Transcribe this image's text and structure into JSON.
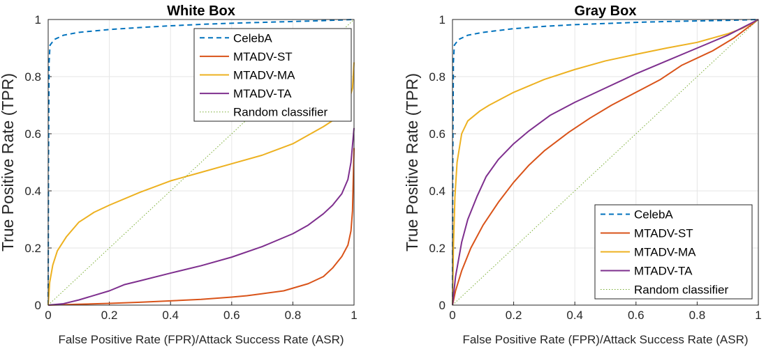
{
  "chart_data": [
    {
      "type": "line",
      "title": "White Box",
      "xlabel": "False Positive Rate (FPR)/Attack Success Rate (ASR)",
      "ylabel": "True Positive Rate (TPR)",
      "xlim": [
        0,
        1
      ],
      "ylim": [
        0,
        1
      ],
      "xticks": [
        "0",
        "0.2",
        "0.4",
        "0.6",
        "0.8",
        "1"
      ],
      "yticks": [
        "0",
        "0.2",
        "0.4",
        "0.6",
        "0.8",
        "1"
      ],
      "grid": true,
      "legend_position": "top-right",
      "series": [
        {
          "name": "CelebA",
          "color": "#0072BD",
          "style": "dashed",
          "points": [
            [
              0,
              0
            ],
            [
              0.001,
              0.5
            ],
            [
              0.003,
              0.85
            ],
            [
              0.006,
              0.91
            ],
            [
              0.02,
              0.93
            ],
            [
              0.05,
              0.945
            ],
            [
              0.1,
              0.955
            ],
            [
              0.2,
              0.965
            ],
            [
              0.3,
              0.972
            ],
            [
              0.4,
              0.978
            ],
            [
              0.5,
              0.983
            ],
            [
              0.6,
              0.987
            ],
            [
              0.7,
              0.99
            ],
            [
              0.8,
              0.993
            ],
            [
              0.9,
              0.996
            ],
            [
              1,
              1
            ]
          ]
        },
        {
          "name": "MTADV-ST",
          "color": "#D95319",
          "style": "solid",
          "points": [
            [
              0,
              0
            ],
            [
              0.1,
              0.003
            ],
            [
              0.2,
              0.006
            ],
            [
              0.3,
              0.01
            ],
            [
              0.4,
              0.015
            ],
            [
              0.5,
              0.02
            ],
            [
              0.6,
              0.028
            ],
            [
              0.65,
              0.033
            ],
            [
              0.7,
              0.04
            ],
            [
              0.77,
              0.05
            ],
            [
              0.85,
              0.075
            ],
            [
              0.9,
              0.1
            ],
            [
              0.93,
              0.13
            ],
            [
              0.96,
              0.17
            ],
            [
              0.98,
              0.21
            ],
            [
              0.99,
              0.26
            ],
            [
              0.995,
              0.33
            ],
            [
              1,
              0.55
            ]
          ]
        },
        {
          "name": "MTADV-MA",
          "color": "#EDB120",
          "style": "solid",
          "points": [
            [
              0,
              0
            ],
            [
              0.005,
              0.08
            ],
            [
              0.015,
              0.14
            ],
            [
              0.03,
              0.19
            ],
            [
              0.06,
              0.24
            ],
            [
              0.1,
              0.29
            ],
            [
              0.15,
              0.325
            ],
            [
              0.2,
              0.35
            ],
            [
              0.3,
              0.395
            ],
            [
              0.4,
              0.435
            ],
            [
              0.5,
              0.465
            ],
            [
              0.6,
              0.495
            ],
            [
              0.7,
              0.525
            ],
            [
              0.8,
              0.565
            ],
            [
              0.9,
              0.625
            ],
            [
              0.95,
              0.66
            ],
            [
              0.98,
              0.7
            ],
            [
              0.995,
              0.76
            ],
            [
              1,
              0.85
            ]
          ]
        },
        {
          "name": "MTADV-TA",
          "color": "#7E2F8E",
          "style": "solid",
          "points": [
            [
              0,
              0
            ],
            [
              0.05,
              0.005
            ],
            [
              0.1,
              0.018
            ],
            [
              0.2,
              0.05
            ],
            [
              0.25,
              0.072
            ],
            [
              0.3,
              0.085
            ],
            [
              0.4,
              0.112
            ],
            [
              0.5,
              0.138
            ],
            [
              0.6,
              0.168
            ],
            [
              0.7,
              0.205
            ],
            [
              0.8,
              0.25
            ],
            [
              0.85,
              0.28
            ],
            [
              0.9,
              0.32
            ],
            [
              0.93,
              0.35
            ],
            [
              0.96,
              0.39
            ],
            [
              0.98,
              0.44
            ],
            [
              0.99,
              0.5
            ],
            [
              1,
              0.62
            ]
          ]
        },
        {
          "name": "Random classifier",
          "color": "#77AC30",
          "style": "dotted",
          "points": [
            [
              0,
              0
            ],
            [
              1,
              1
            ]
          ]
        }
      ]
    },
    {
      "type": "line",
      "title": "Gray Box",
      "xlabel": "False Positive Rate (FPR)/Attack Success Rate (ASR)",
      "ylabel": "True Positive Rate (TPR)",
      "xlim": [
        0,
        1
      ],
      "ylim": [
        0,
        1
      ],
      "xticks": [
        "0",
        "0.2",
        "0.4",
        "0.6",
        "0.8",
        "1"
      ],
      "yticks": [
        "0",
        "0.2",
        "0.4",
        "0.6",
        "0.8",
        "1"
      ],
      "grid": true,
      "legend_position": "bottom-right",
      "series": [
        {
          "name": "CelebA",
          "color": "#0072BD",
          "style": "dashed",
          "points": [
            [
              0,
              0
            ],
            [
              0.001,
              0.5
            ],
            [
              0.003,
              0.85
            ],
            [
              0.006,
              0.91
            ],
            [
              0.02,
              0.93
            ],
            [
              0.05,
              0.945
            ],
            [
              0.1,
              0.955
            ],
            [
              0.2,
              0.968
            ],
            [
              0.3,
              0.976
            ],
            [
              0.4,
              0.982
            ],
            [
              0.5,
              0.986
            ],
            [
              0.6,
              0.99
            ],
            [
              0.7,
              0.993
            ],
            [
              0.8,
              0.995
            ],
            [
              0.9,
              0.997
            ],
            [
              1,
              1
            ]
          ]
        },
        {
          "name": "MTADV-ST",
          "color": "#D95319",
          "style": "solid",
          "points": [
            [
              0,
              0
            ],
            [
              0.01,
              0.05
            ],
            [
              0.03,
              0.12
            ],
            [
              0.06,
              0.2
            ],
            [
              0.1,
              0.28
            ],
            [
              0.15,
              0.36
            ],
            [
              0.2,
              0.43
            ],
            [
              0.25,
              0.49
            ],
            [
              0.3,
              0.54
            ],
            [
              0.38,
              0.605
            ],
            [
              0.45,
              0.655
            ],
            [
              0.52,
              0.7
            ],
            [
              0.6,
              0.745
            ],
            [
              0.68,
              0.79
            ],
            [
              0.75,
              0.84
            ],
            [
              0.85,
              0.89
            ],
            [
              0.92,
              0.935
            ],
            [
              1,
              1
            ]
          ]
        },
        {
          "name": "MTADV-MA",
          "color": "#EDB120",
          "style": "solid",
          "points": [
            [
              0,
              0
            ],
            [
              0.003,
              0.2
            ],
            [
              0.008,
              0.38
            ],
            [
              0.015,
              0.5
            ],
            [
              0.03,
              0.6
            ],
            [
              0.05,
              0.645
            ],
            [
              0.09,
              0.68
            ],
            [
              0.12,
              0.7
            ],
            [
              0.2,
              0.745
            ],
            [
              0.3,
              0.79
            ],
            [
              0.4,
              0.825
            ],
            [
              0.5,
              0.855
            ],
            [
              0.6,
              0.878
            ],
            [
              0.7,
              0.9
            ],
            [
              0.8,
              0.92
            ],
            [
              0.9,
              0.95
            ],
            [
              0.95,
              0.97
            ],
            [
              1,
              1
            ]
          ]
        },
        {
          "name": "MTADV-TA",
          "color": "#7E2F8E",
          "style": "solid",
          "points": [
            [
              0,
              0
            ],
            [
              0.01,
              0.1
            ],
            [
              0.03,
              0.22
            ],
            [
              0.05,
              0.3
            ],
            [
              0.08,
              0.38
            ],
            [
              0.11,
              0.45
            ],
            [
              0.15,
              0.51
            ],
            [
              0.2,
              0.565
            ],
            [
              0.25,
              0.61
            ],
            [
              0.32,
              0.665
            ],
            [
              0.4,
              0.71
            ],
            [
              0.5,
              0.76
            ],
            [
              0.6,
              0.81
            ],
            [
              0.7,
              0.855
            ],
            [
              0.8,
              0.9
            ],
            [
              0.9,
              0.945
            ],
            [
              1,
              1
            ]
          ]
        },
        {
          "name": "Random classifier",
          "color": "#77AC30",
          "style": "dotted",
          "points": [
            [
              0,
              0
            ],
            [
              1,
              1
            ]
          ]
        }
      ]
    }
  ]
}
